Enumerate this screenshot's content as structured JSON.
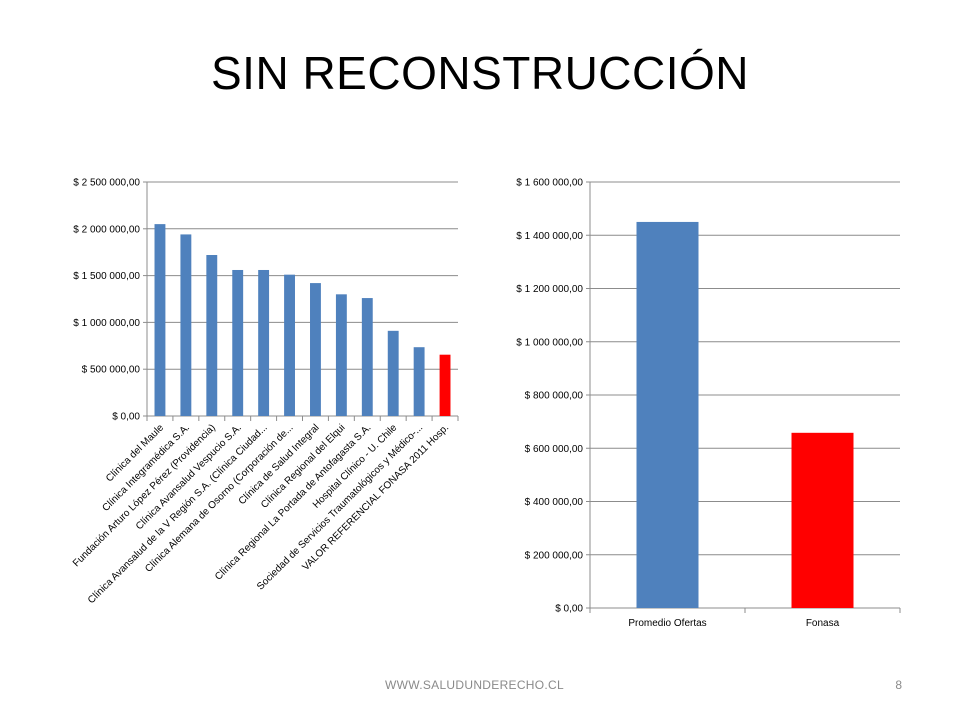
{
  "slide": {
    "title": "SIN RECONSTRUCCIÓN",
    "footer": "WWW.SALUDUNDERECHO.CL",
    "page_number": "8"
  },
  "chart_data": [
    {
      "type": "bar",
      "categories": [
        "Clínica del Maule",
        "Clínica Integramédica S.A.",
        "Fundación Arturo López Pérez (Providencia)",
        "Clínica Avansalud Vespucio S.A.",
        "Clínica Avansalud de la V Región S.A. (Clínica Ciudad...",
        "Clínica Alemana de Osorno (Corporación de...",
        "Clínica de Salud Integral",
        "Clínica Regional del Elqui",
        "Clínica Regional La Portada de Antofagasta S.A.",
        "Hospital Clínico - U. Chile",
        "Sociedad de Servicios Traumatológicos y Médico-...",
        "VALOR REFERENCIAL FONASA 2011 Hosp."
      ],
      "values": [
        2050000,
        1940000,
        1720000,
        1560000,
        1560000,
        1510000,
        1420000,
        1300000,
        1260000,
        910000,
        735000,
        655000
      ],
      "colors": [
        "#4f81bd",
        "#4f81bd",
        "#4f81bd",
        "#4f81bd",
        "#4f81bd",
        "#4f81bd",
        "#4f81bd",
        "#4f81bd",
        "#4f81bd",
        "#4f81bd",
        "#4f81bd",
        "#ff0000"
      ],
      "ylim": [
        0,
        2500000
      ],
      "yticks": [
        0,
        500000,
        1000000,
        1500000,
        2000000,
        2500000
      ],
      "ytick_labels": [
        "$ 0,00",
        "$ 500 000,00",
        "$ 1 000 000,00",
        "$ 1 500 000,00",
        "$ 2 000 000,00",
        "$ 2 500 000,00"
      ],
      "grid": true,
      "title": "",
      "xlabel": "",
      "ylabel": ""
    },
    {
      "type": "bar",
      "categories": [
        "Promedio Ofertas",
        "Fonasa"
      ],
      "values": [
        1450000,
        658000
      ],
      "colors": [
        "#4f81bd",
        "#ff0000"
      ],
      "ylim": [
        0,
        1600000
      ],
      "yticks": [
        0,
        200000,
        400000,
        600000,
        800000,
        1000000,
        1200000,
        1400000,
        1600000
      ],
      "ytick_labels": [
        "$ 0,00",
        "$ 200 000,00",
        "$ 400 000,00",
        "$ 600 000,00",
        "$ 800 000,00",
        "$ 1 000 000,00",
        "$ 1 200 000,00",
        "$ 1 400 000,00",
        "$ 1 600 000,00"
      ],
      "grid": true,
      "title": "",
      "xlabel": "",
      "ylabel": ""
    }
  ]
}
